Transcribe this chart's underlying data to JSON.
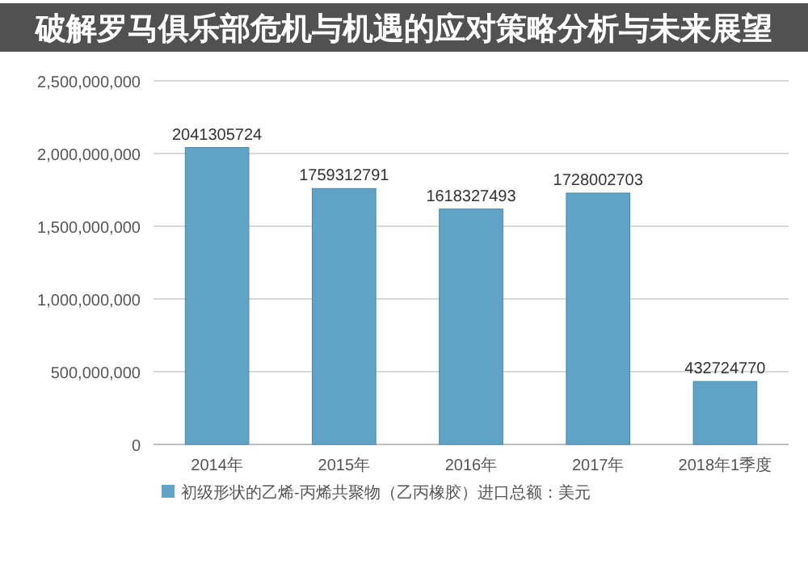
{
  "chart_data": {
    "type": "bar",
    "title": "破解罗马俱乐部危机与机遇的应对策略分析与未来展望",
    "categories": [
      "2014年",
      "2015年",
      "2016年",
      "2017年",
      "2018年1季度"
    ],
    "series": [
      {
        "name": "初级形状的乙烯-丙烯共聚物（乙丙橡胶）进口总额：美元",
        "color": "#5fa3c6",
        "values": [
          2041305724,
          1759312791,
          1618327493,
          1728002703,
          432724770
        ]
      }
    ],
    "ylim": [
      0,
      2500000000
    ],
    "yticks": [
      0,
      {
        "value": 500000000,
        "label": "500,000,000"
      },
      {
        "value": 1000000000,
        "label": "1,000,000,000"
      },
      {
        "value": 1500000000,
        "label": "1,500,000,000"
      },
      {
        "value": 2000000000,
        "label": "2,000,000,000"
      },
      {
        "value": 2500000000,
        "label": "2,500,000,000"
      }
    ],
    "grid": "y",
    "legend": "bottom",
    "data_labels": true
  }
}
